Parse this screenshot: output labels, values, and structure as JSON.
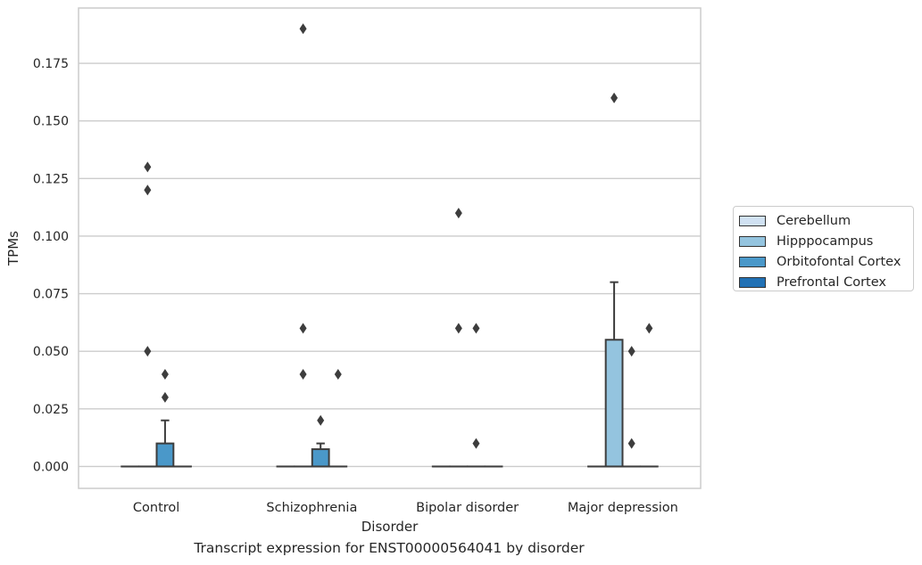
{
  "chart_data": {
    "type": "box",
    "title": "",
    "caption": "Transcript expression for ENST00000564041 by disorder",
    "xlabel": "Disorder",
    "ylabel": "TPMs",
    "ylim": [
      -0.0095,
      0.199
    ],
    "yticks": [
      "0.000",
      "0.025",
      "0.050",
      "0.075",
      "0.100",
      "0.125",
      "0.150",
      "0.175"
    ],
    "grid": "horizontal",
    "legend_position": "right",
    "categories": [
      "Control",
      "Schizophrenia",
      "Bipolar disorder",
      "Major depression"
    ],
    "series": [
      {
        "name": "Cerebellum",
        "color": "#d0e1f2",
        "boxes": [
          {
            "q1": 0,
            "median": 0,
            "q3": 0,
            "whisker_low": 0,
            "whisker_high": 0,
            "outliers": []
          },
          {
            "q1": 0,
            "median": 0,
            "q3": 0,
            "whisker_low": 0,
            "whisker_high": 0,
            "outliers": []
          },
          {
            "q1": 0,
            "median": 0,
            "q3": 0,
            "whisker_low": 0,
            "whisker_high": 0,
            "outliers": []
          },
          {
            "q1": 0,
            "median": 0,
            "q3": 0,
            "whisker_low": 0,
            "whisker_high": 0,
            "outliers": []
          }
        ]
      },
      {
        "name": "Hipppocampus",
        "color": "#94c4df",
        "boxes": [
          {
            "q1": 0,
            "median": 0,
            "q3": 0,
            "whisker_low": 0,
            "whisker_high": 0,
            "outliers": [
              0.05,
              0.12,
              0.13
            ]
          },
          {
            "q1": 0,
            "median": 0,
            "q3": 0,
            "whisker_low": 0,
            "whisker_high": 0,
            "outliers": [
              0.04,
              0.06,
              0.19
            ]
          },
          {
            "q1": 0,
            "median": 0,
            "q3": 0,
            "whisker_low": 0,
            "whisker_high": 0,
            "outliers": [
              0.06,
              0.11
            ]
          },
          {
            "q1": 0,
            "median": 0,
            "q3": 0.055,
            "whisker_low": 0,
            "whisker_high": 0.08,
            "outliers": [
              0.16
            ]
          }
        ]
      },
      {
        "name": "Orbitofontal Cortex",
        "color": "#4a98c9",
        "boxes": [
          {
            "q1": 0,
            "median": 0,
            "q3": 0.01,
            "whisker_low": 0,
            "whisker_high": 0.02,
            "outliers": [
              0.03,
              0.04
            ]
          },
          {
            "q1": 0,
            "median": 0,
            "q3": 0.0075,
            "whisker_low": 0,
            "whisker_high": 0.01,
            "outliers": [
              0.02
            ]
          },
          {
            "q1": 0,
            "median": 0,
            "q3": 0,
            "whisker_low": 0,
            "whisker_high": 0,
            "outliers": [
              0.01,
              0.06
            ]
          },
          {
            "q1": 0,
            "median": 0,
            "q3": 0,
            "whisker_low": 0,
            "whisker_high": 0,
            "outliers": [
              0.01,
              0.05
            ]
          }
        ]
      },
      {
        "name": "Prefrontal Cortex",
        "color": "#2171b5",
        "boxes": [
          {
            "q1": 0,
            "median": 0,
            "q3": 0,
            "whisker_low": 0,
            "whisker_high": 0,
            "outliers": []
          },
          {
            "q1": 0,
            "median": 0,
            "q3": 0,
            "whisker_low": 0,
            "whisker_high": 0,
            "outliers": [
              0.04
            ]
          },
          {
            "q1": 0,
            "median": 0,
            "q3": 0,
            "whisker_low": 0,
            "whisker_high": 0,
            "outliers": []
          },
          {
            "q1": 0,
            "median": 0,
            "q3": 0,
            "whisker_low": 0,
            "whisker_high": 0,
            "outliers": [
              0.06
            ]
          }
        ]
      }
    ]
  }
}
